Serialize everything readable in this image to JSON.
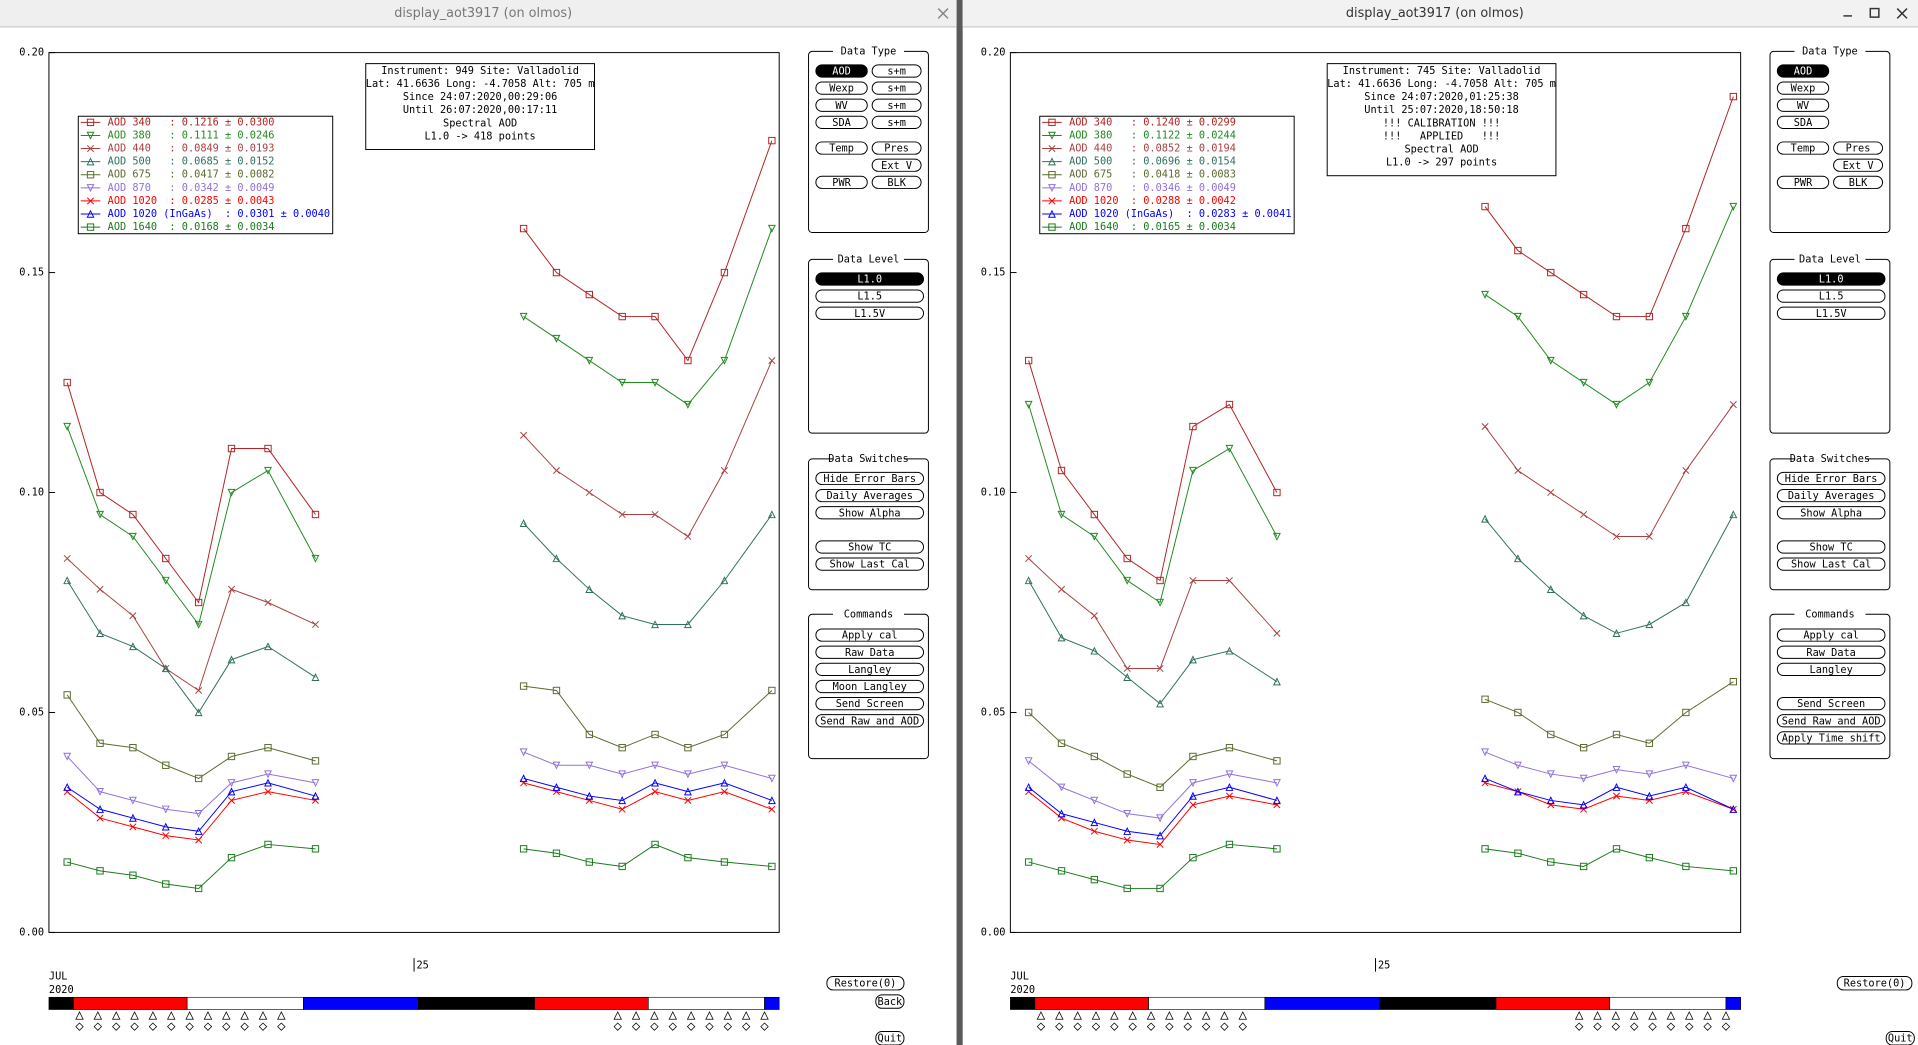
{
  "windows": [
    {
      "title": "display_aot3917 (on olmos)",
      "month": "JUL",
      "year": "2020",
      "buttons": [
        "Restore(0)",
        "Back",
        "Quit"
      ],
      "panel": [
        {
          "title": "Data Type",
          "selected": [
            0,
            0
          ],
          "rows": [
            [
              "AOD",
              "s+m"
            ],
            [
              "Wexp",
              "s+m"
            ],
            [
              "WV",
              "s+m"
            ],
            [
              "SDA",
              "s+m"
            ],
            [
              "Temp",
              "Pres"
            ],
            [
              "Ext V"
            ],
            [
              "PWR",
              "BLK"
            ]
          ]
        },
        {
          "title": "Data Level",
          "selected": [
            0,
            0
          ],
          "rows": [
            [
              "L1.0"
            ],
            [
              "L1.5"
            ],
            [
              "L1.5V"
            ]
          ]
        },
        {
          "title": "Data Switches",
          "rows": [
            [
              "Hide Error Bars"
            ],
            [
              "Daily Averages"
            ],
            [
              "Show Alpha"
            ],
            [
              "Show TC"
            ],
            [
              "Show Last Cal"
            ]
          ]
        },
        {
          "title": "Commands",
          "rows": [
            [
              "Apply cal"
            ],
            [
              "Raw Data"
            ],
            [
              "Langley"
            ],
            [
              "Moon Langley"
            ],
            [
              "Send Screen"
            ],
            [
              "Send Raw and AOD"
            ]
          ]
        }
      ]
    },
    {
      "title": "display_aot3917 (on olmos)",
      "month": "JUL",
      "year": "2020",
      "buttons": [
        "Restore(0)",
        "Quit"
      ],
      "panel": [
        {
          "title": "Data Type",
          "selected": [
            0,
            0
          ],
          "rows": [
            [
              "AOD"
            ],
            [
              "Wexp"
            ],
            [
              "WV"
            ],
            [
              "SDA"
            ],
            [
              "Temp",
              "Pres"
            ],
            [
              "Ext V"
            ],
            [
              "PWR",
              "BLK"
            ]
          ]
        },
        {
          "title": "Data Level",
          "selected": [
            0,
            0
          ],
          "rows": [
            [
              "L1.0"
            ],
            [
              "L1.5"
            ],
            [
              "L1.5V"
            ]
          ]
        },
        {
          "title": "Data Switches",
          "rows": [
            [
              "Hide Error Bars"
            ],
            [
              "Daily Averages"
            ],
            [
              "Show Alpha"
            ],
            [
              "Show TC"
            ],
            [
              "Show Last Cal"
            ]
          ]
        },
        {
          "title": "Commands",
          "rows": [
            [
              "Apply cal"
            ],
            [
              "Raw Data"
            ],
            [
              "Langley"
            ],
            [
              "Send Screen"
            ],
            [
              "Send Raw and AOD"
            ],
            [
              "Apply Time shift"
            ]
          ]
        }
      ]
    }
  ],
  "chart_data": [
    {
      "type": "line",
      "annotations": [
        "Instrument: 949 Site: Valladolid",
        "Lat: 41.6636 Long: -4.7058 Alt: 705 m",
        "Since 24:07:2020,00:29:06",
        "Until 26:07:2020,00:17:11",
        "Spectral AOD",
        "L1.0 -> 418 points"
      ],
      "xlim": [
        24,
        26
      ],
      "xticks": [
        25
      ],
      "ylim": [
        0,
        0.2
      ],
      "yticks": [
        {
          "value": 0,
          "label": "0.00"
        },
        0.05,
        {
          "value": 0.1,
          "label": "0.10"
        },
        0.15,
        {
          "value": 0.2,
          "label": "0.20"
        }
      ],
      "x": [
        24.05,
        24.14,
        24.23,
        24.32,
        24.41,
        24.5,
        24.6,
        24.73,
        25.0,
        25.3,
        25.39,
        25.48,
        25.57,
        25.66,
        25.75,
        25.85,
        25.98
      ],
      "series": [
        {
          "name": "AOD 340   : 0.1216 ± 0.0300",
          "color": "#b22222",
          "marker": "square",
          "values": [
            0.125,
            0.1,
            0.095,
            0.085,
            0.075,
            0.11,
            0.11,
            0.095,
            null,
            0.16,
            0.15,
            0.145,
            0.14,
            0.14,
            0.13,
            0.15,
            0.18
          ]
        },
        {
          "name": "AOD 380   : 0.1111 ± 0.0246",
          "color": "#1f8a1f",
          "marker": "tri-down",
          "values": [
            0.115,
            0.095,
            0.09,
            0.08,
            0.07,
            0.1,
            0.105,
            0.085,
            null,
            0.14,
            0.135,
            0.13,
            0.125,
            0.125,
            0.12,
            0.13,
            0.16
          ]
        },
        {
          "name": "AOD 440   : 0.0849 ± 0.0193",
          "color": "#a84040",
          "marker": "cross",
          "values": [
            0.085,
            0.078,
            0.072,
            0.06,
            0.055,
            0.078,
            0.075,
            0.07,
            null,
            0.113,
            0.105,
            0.1,
            0.095,
            0.095,
            0.09,
            0.105,
            0.13
          ]
        },
        {
          "name": "AOD 500   : 0.0685 ± 0.0152",
          "color": "#2f6f5f",
          "marker": "tri-up",
          "values": [
            0.08,
            0.068,
            0.065,
            0.06,
            0.05,
            0.062,
            0.065,
            0.058,
            null,
            0.093,
            0.085,
            0.078,
            0.072,
            0.07,
            0.07,
            0.08,
            0.095
          ]
        },
        {
          "name": "AOD 675   : 0.0417 ± 0.0082",
          "color": "#5a6b2f",
          "marker": "square",
          "values": [
            0.054,
            0.043,
            0.042,
            0.038,
            0.035,
            0.04,
            0.042,
            0.039,
            null,
            0.056,
            0.055,
            0.045,
            0.042,
            0.045,
            0.042,
            0.045,
            0.055
          ]
        },
        {
          "name": "AOD 870   : 0.0342 ± 0.0049",
          "color": "#9370db",
          "marker": "tri-down",
          "values": [
            0.04,
            0.032,
            0.03,
            0.028,
            0.027,
            0.034,
            0.036,
            0.034,
            null,
            0.041,
            0.038,
            0.038,
            0.036,
            0.038,
            0.036,
            0.038,
            0.035
          ]
        },
        {
          "name": "AOD 1020  : 0.0285 ± 0.0043",
          "color": "#ff0000",
          "marker": "cross",
          "values": [
            0.032,
            0.026,
            0.024,
            0.022,
            0.021,
            0.03,
            0.032,
            0.03,
            null,
            0.034,
            0.032,
            0.03,
            0.028,
            0.032,
            0.03,
            0.032,
            0.028
          ]
        },
        {
          "name": "AOD 1020 (InGaAs)  : 0.0301 ± 0.0040",
          "color": "#0000ff",
          "marker": "tri-up",
          "values": [
            0.033,
            0.028,
            0.026,
            0.024,
            0.023,
            0.032,
            0.034,
            0.031,
            null,
            0.035,
            0.033,
            0.031,
            0.03,
            0.034,
            0.032,
            0.034,
            0.03
          ]
        },
        {
          "name": "AOD 1640  : 0.0168 ± 0.0034",
          "color": "#1a7a1a",
          "marker": "square",
          "values": [
            0.016,
            0.014,
            0.013,
            0.011,
            0.01,
            0.017,
            0.02,
            0.019,
            null,
            0.019,
            0.018,
            0.016,
            0.015,
            0.02,
            0.017,
            0.016,
            0.015
          ]
        }
      ]
    },
    {
      "type": "line",
      "annotations": [
        "Instrument: 745 Site: Valladolid",
        "Lat: 41.6636 Long: -4.7058 Alt: 705 m",
        "Since 24:07:2020,01:25:38",
        "Until 25:07:2020,18:50:18",
        "!!! CALIBRATION !!!",
        "!!!   APPLIED   !!!",
        "Spectral AOD",
        "L1.0 -> 297 points"
      ],
      "xlim": [
        24,
        26
      ],
      "xticks": [
        25
      ],
      "ylim": [
        0,
        0.2
      ],
      "yticks": [
        {
          "value": 0,
          "label": "0.00"
        },
        0.05,
        {
          "value": 0.1,
          "label": "0.10"
        },
        0.15,
        {
          "value": 0.2,
          "label": "0.20"
        }
      ],
      "x": [
        24.05,
        24.14,
        24.23,
        24.32,
        24.41,
        24.5,
        24.6,
        24.73,
        25.0,
        25.3,
        25.39,
        25.48,
        25.57,
        25.66,
        25.75,
        25.85,
        25.98
      ],
      "series": [
        {
          "name": "AOD 340   : 0.1240 ± 0.0299",
          "color": "#b22222",
          "marker": "square",
          "values": [
            0.13,
            0.105,
            0.095,
            0.085,
            0.08,
            0.115,
            0.12,
            0.1,
            null,
            0.165,
            0.155,
            0.15,
            0.145,
            0.14,
            0.14,
            0.16,
            0.19
          ]
        },
        {
          "name": "AOD 380   : 0.1122 ± 0.0244",
          "color": "#1f8a1f",
          "marker": "tri-down",
          "values": [
            0.12,
            0.095,
            0.09,
            0.08,
            0.075,
            0.105,
            0.11,
            0.09,
            null,
            0.145,
            0.14,
            0.13,
            0.125,
            0.12,
            0.125,
            0.14,
            0.165
          ]
        },
        {
          "name": "AOD 440   : 0.0852 ± 0.0194",
          "color": "#a84040",
          "marker": "cross",
          "values": [
            0.085,
            0.078,
            0.072,
            0.06,
            0.06,
            0.08,
            0.08,
            0.068,
            null,
            0.115,
            0.105,
            0.1,
            0.095,
            0.09,
            0.09,
            0.105,
            0.12
          ]
        },
        {
          "name": "AOD 500   : 0.0696 ± 0.0154",
          "color": "#2f6f5f",
          "marker": "tri-up",
          "values": [
            0.08,
            0.067,
            0.064,
            0.058,
            0.052,
            0.062,
            0.064,
            0.057,
            null,
            0.094,
            0.085,
            0.078,
            0.072,
            0.068,
            0.07,
            0.075,
            0.095
          ]
        },
        {
          "name": "AOD 675   : 0.0418 ± 0.0083",
          "color": "#5a6b2f",
          "marker": "square",
          "values": [
            0.05,
            0.043,
            0.04,
            0.036,
            0.033,
            0.04,
            0.042,
            0.039,
            null,
            0.053,
            0.05,
            0.045,
            0.042,
            0.045,
            0.043,
            0.05,
            0.057
          ]
        },
        {
          "name": "AOD 870   : 0.0346 ± 0.0049",
          "color": "#9370db",
          "marker": "tri-down",
          "values": [
            0.039,
            0.033,
            0.03,
            0.027,
            0.026,
            0.034,
            0.036,
            0.034,
            null,
            0.041,
            0.038,
            0.036,
            0.035,
            0.037,
            0.036,
            0.038,
            0.035
          ]
        },
        {
          "name": "AOD 1020  : 0.0288 ± 0.0042",
          "color": "#ff0000",
          "marker": "cross",
          "values": [
            0.032,
            0.026,
            0.023,
            0.021,
            0.02,
            0.029,
            0.031,
            0.029,
            null,
            0.034,
            0.032,
            0.029,
            0.028,
            0.031,
            0.03,
            0.032,
            0.028
          ]
        },
        {
          "name": "AOD 1020 (InGaAs)  : 0.0283 ± 0.0041",
          "color": "#0000ff",
          "marker": "tri-up",
          "values": [
            0.033,
            0.027,
            0.025,
            0.023,
            0.022,
            0.031,
            0.033,
            0.03,
            null,
            0.035,
            0.032,
            0.03,
            0.029,
            0.033,
            0.031,
            0.033,
            0.028
          ]
        },
        {
          "name": "AOD 1640  : 0.0165 ± 0.0034",
          "color": "#1a7a1a",
          "marker": "square",
          "values": [
            0.016,
            0.014,
            0.012,
            0.01,
            0.01,
            0.017,
            0.02,
            0.019,
            null,
            0.019,
            0.018,
            0.016,
            0.015,
            0.019,
            0.017,
            0.015,
            0.014
          ]
        }
      ]
    }
  ]
}
